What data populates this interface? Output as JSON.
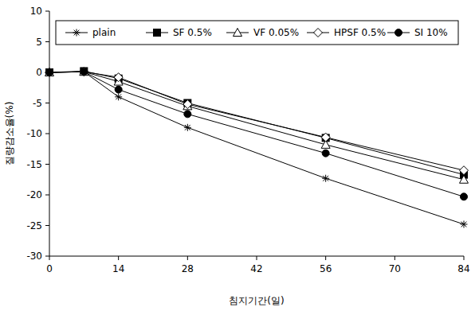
{
  "chart_data": {
    "type": "line",
    "x_label": "침지기간(일)",
    "y_label": "질량감소율(%)",
    "x": [
      0,
      7,
      14,
      28,
      56,
      84
    ],
    "xlim": [
      0,
      84
    ],
    "xticks": [
      0,
      14,
      28,
      42,
      56,
      70,
      84
    ],
    "ylim": [
      -30,
      10
    ],
    "yticks": [
      -30,
      -25,
      -20,
      -15,
      -10,
      -5,
      0,
      5,
      10
    ],
    "grid": false,
    "legend": "top",
    "series": [
      {
        "name": "plain",
        "color": "#000000",
        "marker": "asterisk",
        "values": [
          0,
          0.1,
          -4.0,
          -9.0,
          -17.3,
          -24.8
        ]
      },
      {
        "name": "SF 0.5%",
        "color": "#000000",
        "marker": "square",
        "values": [
          0,
          0.2,
          -1.0,
          -5.0,
          -10.7,
          -16.7
        ]
      },
      {
        "name": "VF 0.05%",
        "color": "#000000",
        "marker": "open-triangle",
        "values": [
          0,
          0.1,
          -1.5,
          -5.5,
          -11.8,
          -17.5
        ]
      },
      {
        "name": "HPSF 0.5%",
        "color": "#000000",
        "marker": "open-diamond",
        "values": [
          0,
          0.1,
          -0.8,
          -5.2,
          -10.6,
          -16.0
        ]
      },
      {
        "name": "SI 10%",
        "color": "#000000",
        "marker": "circle",
        "values": [
          0,
          0.1,
          -2.8,
          -6.8,
          -13.2,
          -20.3
        ]
      }
    ]
  }
}
